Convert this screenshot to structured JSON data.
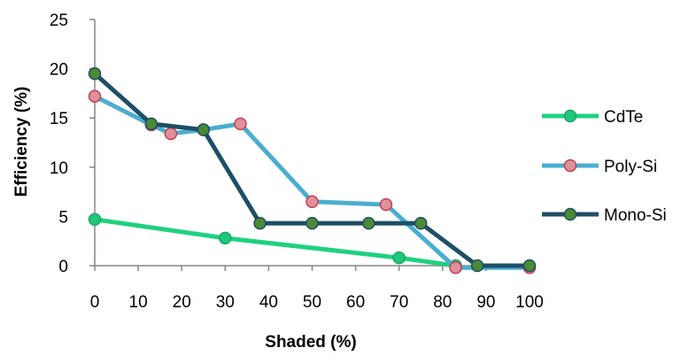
{
  "chart_data": {
    "type": "line",
    "title": "",
    "xlabel": "Shaded (%)",
    "ylabel": "Efficiency  (%)",
    "xlim": [
      0,
      100
    ],
    "ylim": [
      0,
      25
    ],
    "xticks": [
      0,
      10,
      20,
      30,
      40,
      50,
      60,
      70,
      80,
      90,
      100
    ],
    "yticks": [
      0,
      5,
      10,
      15,
      20,
      25
    ],
    "grid": false,
    "legend_position": "right",
    "series": [
      {
        "name": "CdTe",
        "color": "#1fd17f",
        "marker_fill": "#1fc87a",
        "marker_edge": "#1aa566",
        "x": [
          0,
          30,
          70,
          83
        ],
        "y": [
          4.7,
          2.8,
          0.8,
          0
        ]
      },
      {
        "name": "Poly-Si",
        "color": "#4aaed0",
        "marker_fill": "#e0909a",
        "marker_edge": "#c04050",
        "x": [
          0,
          13,
          17.5,
          25,
          33.5,
          50,
          67,
          83,
          100
        ],
        "y": [
          17.2,
          14.3,
          13.4,
          13.8,
          14.4,
          6.5,
          6.2,
          -0.2,
          -0.2
        ]
      },
      {
        "name": "Mono-Si",
        "color": "#1d4f66",
        "marker_fill": "#4a8a34",
        "marker_edge": "#1d4f66",
        "x": [
          0,
          13,
          25,
          38,
          50,
          63,
          75,
          88,
          100
        ],
        "y": [
          19.5,
          14.4,
          13.8,
          4.3,
          4.3,
          4.3,
          4.3,
          0,
          0
        ]
      }
    ]
  }
}
